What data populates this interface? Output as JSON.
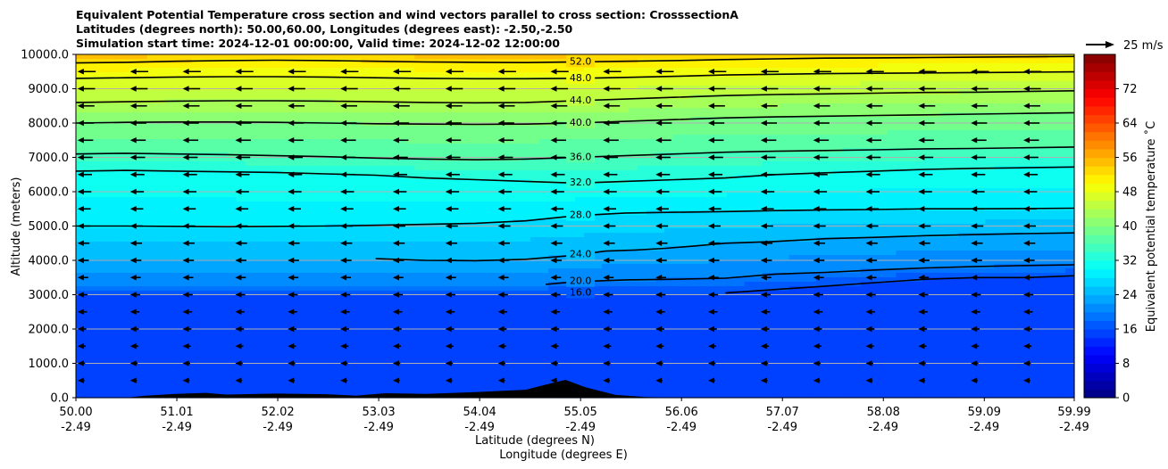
{
  "chart_data": {
    "type": "contour-cross-section",
    "title_lines": [
      "Equivalent Potential Temperature cross section and wind vectors parallel to cross section: CrosssectionA",
      "Latitudes (degrees north): 50.00,60.00, Longitudes (degrees east): -2.50,-2.50",
      "Simulation start time: 2024-12-01 00:00:00, Valid time: 2024-12-02 12:00:00"
    ],
    "ylabel": "Altitude (meters)",
    "xlabel_lat": "Latitude (degrees N)",
    "xlabel_lon": "Longitude (degrees E)",
    "xlim": [
      50.0,
      59.99
    ],
    "ylim": [
      0,
      10000
    ],
    "x_ticks": [
      {
        "lat": 50.0,
        "label": "50.00",
        "lon_label": "-2.49"
      },
      {
        "lat": 51.01,
        "label": "51.01",
        "lon_label": "-2.49"
      },
      {
        "lat": 52.02,
        "label": "52.02",
        "lon_label": "-2.49"
      },
      {
        "lat": 53.03,
        "label": "53.03",
        "lon_label": "-2.49"
      },
      {
        "lat": 54.04,
        "label": "54.04",
        "lon_label": "-2.49"
      },
      {
        "lat": 55.05,
        "label": "55.05",
        "lon_label": "-2.49"
      },
      {
        "lat": 56.06,
        "label": "56.06",
        "lon_label": "-2.49"
      },
      {
        "lat": 57.07,
        "label": "57.07",
        "lon_label": "-2.49"
      },
      {
        "lat": 58.08,
        "label": "58.08",
        "lon_label": "-2.49"
      },
      {
        "lat": 59.09,
        "label": "59.09",
        "lon_label": "-2.49"
      },
      {
        "lat": 59.99,
        "label": "59.99",
        "lon_label": "-2.49"
      }
    ],
    "y_ticks": [
      {
        "value": 0,
        "label": "0.0"
      },
      {
        "value": 1000,
        "label": "1000.0"
      },
      {
        "value": 2000,
        "label": "2000.0"
      },
      {
        "value": 3000,
        "label": "3000.0"
      },
      {
        "value": 4000,
        "label": "4000.0"
      },
      {
        "value": 5000,
        "label": "5000.0"
      },
      {
        "value": 6000,
        "label": "6000.0"
      },
      {
        "value": 7000,
        "label": "7000.0"
      },
      {
        "value": 8000,
        "label": "8000.0"
      },
      {
        "value": 9000,
        "label": "9000.0"
      },
      {
        "value": 10000,
        "label": "10000.0"
      }
    ],
    "grid": "horizontal",
    "colorbar": {
      "label": "Equivalent potential temperature ˚C",
      "min": 0,
      "max": 80,
      "step": 2,
      "colormap": "jet",
      "ticks": [
        {
          "value": 0,
          "label": "0"
        },
        {
          "value": 8,
          "label": "8"
        },
        {
          "value": 16,
          "label": "16"
        },
        {
          "value": 24,
          "label": "24"
        },
        {
          "value": 32,
          "label": "32"
        },
        {
          "value": 40,
          "label": "40"
        },
        {
          "value": 48,
          "label": "48"
        },
        {
          "value": 56,
          "label": "56"
        },
        {
          "value": 64,
          "label": "64"
        },
        {
          "value": 72,
          "label": "72"
        }
      ]
    },
    "quiver_key": {
      "label": "25 m/s",
      "value": 25
    },
    "contours": [
      {
        "level": 16,
        "label": "16.0",
        "points": [
          [
            56.5,
            3050
          ],
          [
            57,
            3150
          ],
          [
            57.5,
            3250
          ],
          [
            58,
            3350
          ],
          [
            58.5,
            3450
          ],
          [
            59,
            3500
          ],
          [
            59.5,
            3500
          ],
          [
            59.99,
            3550
          ]
        ]
      },
      {
        "level": 20,
        "label": "20.0",
        "points": [
          [
            54.7,
            3300
          ],
          [
            55,
            3380
          ],
          [
            55.5,
            3430
          ],
          [
            56,
            3450
          ],
          [
            56.5,
            3480
          ],
          [
            57,
            3600
          ],
          [
            57.5,
            3650
          ],
          [
            58,
            3720
          ],
          [
            58.5,
            3780
          ],
          [
            59,
            3820
          ],
          [
            59.5,
            3850
          ],
          [
            59.99,
            3870
          ]
        ]
      },
      {
        "level": 24,
        "label": "24.0",
        "points": [
          [
            53,
            4050
          ],
          [
            53.5,
            4000
          ],
          [
            54,
            3990
          ],
          [
            54.5,
            4030
          ],
          [
            55,
            4150
          ],
          [
            55.3,
            4270
          ],
          [
            55.6,
            4300
          ],
          [
            55.9,
            4350
          ],
          [
            56.2,
            4420
          ],
          [
            56.5,
            4500
          ],
          [
            57,
            4550
          ],
          [
            57.5,
            4630
          ],
          [
            58,
            4670
          ],
          [
            58.5,
            4720
          ],
          [
            59,
            4750
          ],
          [
            59.5,
            4780
          ],
          [
            59.99,
            4800
          ]
        ]
      },
      {
        "level": 28,
        "label": "28.0",
        "points": [
          [
            50,
            5000
          ],
          [
            50.5,
            5000
          ],
          [
            51,
            4990
          ],
          [
            51.5,
            4980
          ],
          [
            52,
            4990
          ],
          [
            52.5,
            5000
          ],
          [
            53,
            5020
          ],
          [
            53.5,
            5050
          ],
          [
            54,
            5080
          ],
          [
            54.5,
            5150
          ],
          [
            55,
            5300
          ],
          [
            55.5,
            5380
          ],
          [
            56,
            5400
          ],
          [
            56.5,
            5420
          ],
          [
            57,
            5450
          ],
          [
            57.5,
            5470
          ],
          [
            58,
            5480
          ],
          [
            58.5,
            5500
          ],
          [
            59,
            5500
          ],
          [
            59.5,
            5510
          ],
          [
            59.99,
            5520
          ]
        ]
      },
      {
        "level": 32,
        "label": "32.0",
        "points": [
          [
            50,
            6600
          ],
          [
            50.5,
            6620
          ],
          [
            51,
            6600
          ],
          [
            51.5,
            6580
          ],
          [
            52,
            6560
          ],
          [
            52.5,
            6520
          ],
          [
            53,
            6480
          ],
          [
            53.5,
            6400
          ],
          [
            54,
            6350
          ],
          [
            54.5,
            6300
          ],
          [
            55,
            6250
          ],
          [
            55.5,
            6300
          ],
          [
            56,
            6350
          ],
          [
            56.5,
            6400
          ],
          [
            57,
            6500
          ],
          [
            57.5,
            6550
          ],
          [
            58,
            6600
          ],
          [
            58.5,
            6650
          ],
          [
            59,
            6680
          ],
          [
            59.5,
            6700
          ],
          [
            59.99,
            6720
          ]
        ]
      },
      {
        "level": 36,
        "label": "36.0",
        "points": [
          [
            50,
            7100
          ],
          [
            50.5,
            7120
          ],
          [
            51,
            7100
          ],
          [
            51.5,
            7080
          ],
          [
            52,
            7050
          ],
          [
            52.5,
            7020
          ],
          [
            53,
            6980
          ],
          [
            53.5,
            6950
          ],
          [
            54,
            6930
          ],
          [
            54.5,
            6950
          ],
          [
            55,
            7000
          ],
          [
            55.5,
            7050
          ],
          [
            56,
            7100
          ],
          [
            56.5,
            7150
          ],
          [
            57,
            7180
          ],
          [
            57.5,
            7200
          ],
          [
            58,
            7220
          ],
          [
            58.5,
            7250
          ],
          [
            59,
            7260
          ],
          [
            59.5,
            7280
          ],
          [
            59.99,
            7300
          ]
        ]
      },
      {
        "level": 40,
        "label": "40.0",
        "points": [
          [
            50,
            8000
          ],
          [
            50.5,
            8020
          ],
          [
            51,
            8030
          ],
          [
            51.5,
            8030
          ],
          [
            52,
            8020
          ],
          [
            52.5,
            8000
          ],
          [
            53,
            7980
          ],
          [
            53.5,
            7970
          ],
          [
            54,
            7960
          ],
          [
            54.5,
            7970
          ],
          [
            55,
            8000
          ],
          [
            55.5,
            8050
          ],
          [
            56,
            8100
          ],
          [
            56.5,
            8150
          ],
          [
            57,
            8180
          ],
          [
            57.5,
            8200
          ],
          [
            58,
            8220
          ],
          [
            58.5,
            8240
          ],
          [
            59,
            8260
          ],
          [
            59.5,
            8280
          ],
          [
            59.99,
            8300
          ]
        ]
      },
      {
        "level": 44,
        "label": "44.0",
        "points": [
          [
            50,
            8600
          ],
          [
            50.5,
            8620
          ],
          [
            51,
            8640
          ],
          [
            51.5,
            8650
          ],
          [
            52,
            8650
          ],
          [
            52.5,
            8640
          ],
          [
            53,
            8620
          ],
          [
            53.5,
            8600
          ],
          [
            54,
            8590
          ],
          [
            54.5,
            8600
          ],
          [
            55,
            8650
          ],
          [
            55.5,
            8700
          ],
          [
            56,
            8750
          ],
          [
            56.5,
            8800
          ],
          [
            57,
            8830
          ],
          [
            57.5,
            8850
          ],
          [
            58,
            8870
          ],
          [
            58.5,
            8890
          ],
          [
            59,
            8900
          ],
          [
            59.5,
            8920
          ],
          [
            59.99,
            8940
          ]
        ]
      },
      {
        "level": 48,
        "label": "48.0",
        "points": [
          [
            50,
            9300
          ],
          [
            50.5,
            9320
          ],
          [
            51,
            9340
          ],
          [
            51.5,
            9350
          ],
          [
            52,
            9350
          ],
          [
            52.5,
            9340
          ],
          [
            53,
            9320
          ],
          [
            53.5,
            9300
          ],
          [
            54,
            9290
          ],
          [
            54.5,
            9290
          ],
          [
            55,
            9300
          ],
          [
            55.5,
            9330
          ],
          [
            56,
            9360
          ],
          [
            56.5,
            9400
          ],
          [
            57,
            9420
          ],
          [
            57.5,
            9440
          ],
          [
            58,
            9450
          ],
          [
            58.5,
            9460
          ],
          [
            59,
            9470
          ],
          [
            59.5,
            9480
          ],
          [
            59.99,
            9490
          ]
        ]
      },
      {
        "level": 52,
        "label": "52.0",
        "points": [
          [
            50,
            9750
          ],
          [
            50.5,
            9770
          ],
          [
            51,
            9800
          ],
          [
            51.5,
            9820
          ],
          [
            52,
            9830
          ],
          [
            52.5,
            9820
          ],
          [
            53,
            9800
          ],
          [
            53.5,
            9780
          ],
          [
            54,
            9770
          ],
          [
            54.5,
            9760
          ],
          [
            55,
            9780
          ],
          [
            55.5,
            9800
          ],
          [
            56,
            9820
          ],
          [
            56.5,
            9850
          ],
          [
            57,
            9870
          ],
          [
            57.5,
            9890
          ],
          [
            58,
            9900
          ],
          [
            58.5,
            9910
          ],
          [
            59,
            9920
          ],
          [
            59.5,
            9930
          ],
          [
            59.99,
            9940
          ]
        ]
      }
    ],
    "terrain": [
      [
        50,
        0
      ],
      [
        50.5,
        0
      ],
      [
        50.7,
        60
      ],
      [
        51,
        110
      ],
      [
        51.3,
        140
      ],
      [
        51.5,
        90
      ],
      [
        52,
        120
      ],
      [
        52.5,
        100
      ],
      [
        52.8,
        60
      ],
      [
        53.1,
        130
      ],
      [
        53.5,
        110
      ],
      [
        54,
        160
      ],
      [
        54.5,
        230
      ],
      [
        54.7,
        380
      ],
      [
        54.9,
        520
      ],
      [
        55.1,
        300
      ],
      [
        55.4,
        80
      ],
      [
        55.7,
        20
      ],
      [
        56,
        0
      ],
      [
        59.99,
        0
      ]
    ]
  }
}
